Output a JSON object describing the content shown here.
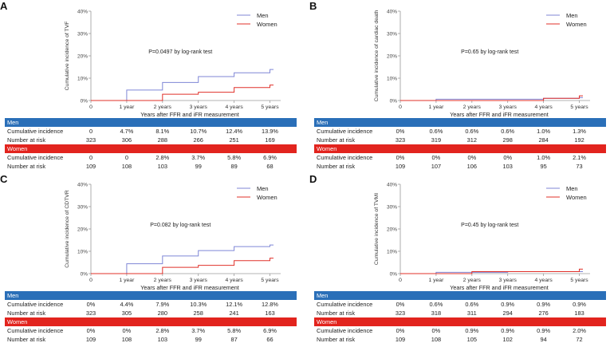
{
  "colors": {
    "men": "#7f86d6",
    "women": "#e0302a",
    "men_band": "#2a6fb8",
    "women_band": "#e2241e",
    "axis": "#9a9a9a"
  },
  "panels": [
    {
      "letter": "A",
      "ylabel": "Cumulative incidence of TVF",
      "annotation": "P=0.0497 by log-rank test",
      "legend": [
        "Men",
        "Women"
      ],
      "men_label": "Men",
      "women_label": "Women",
      "rows": {
        "men": [
          {
            "label": "Cumulative incidence",
            "values": [
              "0",
              "4.7%",
              "8.1%",
              "10.7%",
              "12.4%",
              "13.9%"
            ]
          },
          {
            "label": "Number at risk",
            "values": [
              "323",
              "306",
              "288",
              "266",
              "251",
              "169"
            ]
          }
        ],
        "women": [
          {
            "label": "Cumulative incidence",
            "values": [
              "0",
              "0",
              "2.8%",
              "3.7%",
              "5.8%",
              "6.9%"
            ]
          },
          {
            "label": "Number at risk",
            "values": [
              "109",
              "108",
              "103",
              "99",
              "89",
              "68"
            ]
          }
        ]
      }
    },
    {
      "letter": "B",
      "ylabel": "Cumulative incidence of cardiac death",
      "annotation": "P=0.65 by log-rank test",
      "legend": [
        "Men",
        "Women"
      ],
      "men_label": "Men",
      "women_label": "Women",
      "rows": {
        "men": [
          {
            "label": "Cumulative incidence",
            "values": [
              "0%",
              "0.6%",
              "0.6%",
              "0.6%",
              "1.0%",
              "1.3%"
            ]
          },
          {
            "label": "Number at risk",
            "values": [
              "323",
              "319",
              "312",
              "298",
              "284",
              "192"
            ]
          }
        ],
        "women": [
          {
            "label": "Cumulative incidence",
            "values": [
              "0%",
              "0%",
              "0%",
              "0%",
              "1.0%",
              "2.1%"
            ]
          },
          {
            "label": "Number at risk",
            "values": [
              "109",
              "107",
              "106",
              "103",
              "95",
              "73"
            ]
          }
        ]
      }
    },
    {
      "letter": "C",
      "ylabel": "Cumulative incidence of CDTVR",
      "annotation": "P=0.082 by log-rank test",
      "legend": [
        "Men",
        "Women"
      ],
      "men_label": "Men",
      "women_label": "Women",
      "rows": {
        "men": [
          {
            "label": "Cumulative incidence",
            "values": [
              "0%",
              "4.4%",
              "7.9%",
              "10.3%",
              "12.1%",
              "12.8%"
            ]
          },
          {
            "label": "Number at risk",
            "values": [
              "323",
              "305",
              "280",
              "258",
              "241",
              "163"
            ]
          }
        ],
        "women": [
          {
            "label": "Cumulative incidence",
            "values": [
              "0%",
              "0%",
              "2.8%",
              "3.7%",
              "5.8%",
              "6.9%"
            ]
          },
          {
            "label": "Number at risk",
            "values": [
              "109",
              "108",
              "103",
              "99",
              "87",
              "66"
            ]
          }
        ]
      }
    },
    {
      "letter": "D",
      "ylabel": "Cumulative incidence of TVMI",
      "annotation": "P=0.45 by log-rank test",
      "legend": [
        "Men",
        "Women"
      ],
      "men_label": "Men",
      "women_label": "Women",
      "rows": {
        "men": [
          {
            "label": "Cumulative incidence",
            "values": [
              "0%",
              "0.6%",
              "0.6%",
              "0.9%",
              "0.9%",
              "0.9%"
            ]
          },
          {
            "label": "Number at risk",
            "values": [
              "323",
              "318",
              "311",
              "294",
              "276",
              "183"
            ]
          }
        ],
        "women": [
          {
            "label": "Cumulative incidence",
            "values": [
              "0%",
              "0%",
              "0.9%",
              "0.9%",
              "0.9%",
              "2.0%"
            ]
          },
          {
            "label": "Number at risk",
            "values": [
              "109",
              "108",
              "105",
              "102",
              "94",
              "72"
            ]
          }
        ]
      }
    }
  ],
  "chart_data": [
    {
      "type": "line",
      "title": "A",
      "xlabel": "Years after FFR and iFR measurement",
      "ylabel": "Cumulative incidence of TVF",
      "x_ticks": [
        "0",
        "1 year",
        "2 years",
        "3 years",
        "4 years",
        "5 years"
      ],
      "y_ticks": [
        "0%",
        "10%",
        "20%",
        "30%",
        "40%"
      ],
      "xlim": [
        0,
        5.3
      ],
      "ylim": [
        0,
        40
      ],
      "annotation": "P=0.0497 by log-rank test",
      "legend_position": "top-right",
      "series": [
        {
          "name": "Men",
          "x": [
            0,
            1,
            2,
            3,
            4,
            5
          ],
          "values": [
            0,
            4.7,
            8.1,
            10.7,
            12.4,
            13.9
          ]
        },
        {
          "name": "Women",
          "x": [
            0,
            1,
            2,
            3,
            4,
            5
          ],
          "values": [
            0,
            0,
            2.8,
            3.7,
            5.8,
            6.9
          ]
        }
      ]
    },
    {
      "type": "line",
      "title": "B",
      "xlabel": "Years after FFR and iFR measurement",
      "ylabel": "Cumulative incidence of cardiac death",
      "x_ticks": [
        "0",
        "1 year",
        "2 years",
        "3 years",
        "4 years",
        "5 years"
      ],
      "y_ticks": [
        "0%",
        "10%",
        "20%",
        "30%",
        "40%"
      ],
      "xlim": [
        0,
        5.3
      ],
      "ylim": [
        0,
        40
      ],
      "annotation": "P=0.65 by log-rank test",
      "legend_position": "top-right",
      "series": [
        {
          "name": "Men",
          "x": [
            0,
            1,
            2,
            3,
            4,
            5
          ],
          "values": [
            0,
            0.6,
            0.6,
            0.6,
            1.0,
            1.3
          ]
        },
        {
          "name": "Women",
          "x": [
            0,
            1,
            2,
            3,
            4,
            5
          ],
          "values": [
            0,
            0,
            0,
            0,
            1.0,
            2.1
          ]
        }
      ]
    },
    {
      "type": "line",
      "title": "C",
      "xlabel": "Years after FFR and iFR measurement",
      "ylabel": "Cumulative incidence of CDTVR",
      "x_ticks": [
        "0",
        "1 year",
        "2 years",
        "3 years",
        "4 years",
        "5 years"
      ],
      "y_ticks": [
        "0%",
        "10%",
        "20%",
        "30%",
        "40%"
      ],
      "xlim": [
        0,
        5.3
      ],
      "ylim": [
        0,
        40
      ],
      "annotation": "P=0.082 by log-rank test",
      "legend_position": "top-right",
      "series": [
        {
          "name": "Men",
          "x": [
            0,
            1,
            2,
            3,
            4,
            5
          ],
          "values": [
            0,
            4.4,
            7.9,
            10.3,
            12.1,
            12.8
          ]
        },
        {
          "name": "Women",
          "x": [
            0,
            1,
            2,
            3,
            4,
            5
          ],
          "values": [
            0,
            0,
            2.8,
            3.7,
            5.8,
            6.9
          ]
        }
      ]
    },
    {
      "type": "line",
      "title": "D",
      "xlabel": "Years after FFR and iFR measurement",
      "ylabel": "Cumulative incidence of TVMI",
      "x_ticks": [
        "0",
        "1 year",
        "2 years",
        "3 years",
        "4 years",
        "5 years"
      ],
      "y_ticks": [
        "0%",
        "10%",
        "20%",
        "30%",
        "40%"
      ],
      "xlim": [
        0,
        5.3
      ],
      "ylim": [
        0,
        40
      ],
      "annotation": "P=0.45 by log-rank test",
      "legend_position": "top-right",
      "series": [
        {
          "name": "Men",
          "x": [
            0,
            1,
            2,
            3,
            4,
            5
          ],
          "values": [
            0,
            0.6,
            0.6,
            0.9,
            0.9,
            0.9
          ]
        },
        {
          "name": "Women",
          "x": [
            0,
            1,
            2,
            3,
            4,
            5
          ],
          "values": [
            0,
            0,
            0.9,
            0.9,
            0.9,
            2.0
          ]
        }
      ]
    }
  ]
}
